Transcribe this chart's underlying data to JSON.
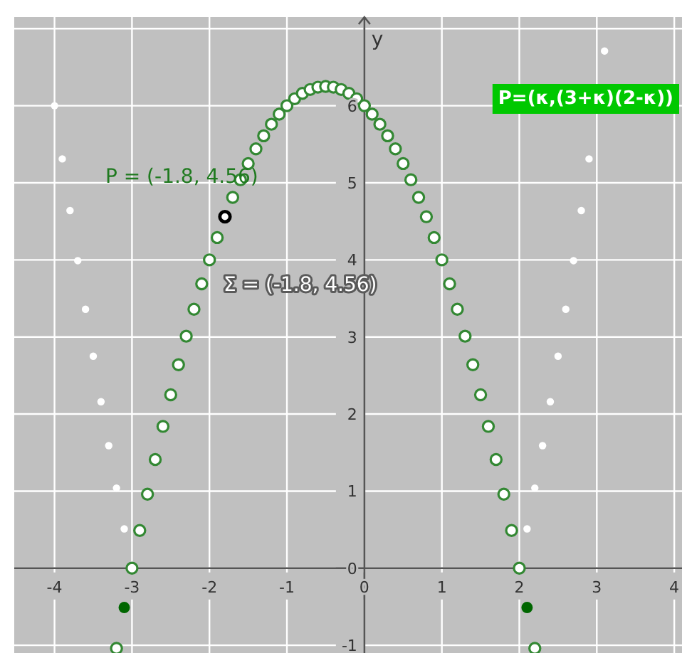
{
  "chart_data": {
    "type": "scatter",
    "title": "P=(κ,(3+κ)(2-κ))",
    "ylabel": "y",
    "xlim": [
      -4.52,
      4.1
    ],
    "ylim": [
      -1.1,
      7.15
    ],
    "xticks": [
      -4,
      -3,
      -2,
      -1,
      0,
      1,
      2,
      3,
      4
    ],
    "yticks": [
      -1,
      0,
      1,
      2,
      3,
      4,
      5,
      6,
      {
        "value": 7,
        "label": null
      }
    ],
    "grid": true,
    "marker": "circle",
    "series": [
      {
        "color": "#ffffff",
        "x": [
          -4.0,
          -3.9,
          -3.8,
          -3.7,
          -3.6,
          -3.5,
          -3.4,
          -3.3,
          -3.2,
          -3.1,
          2.1,
          2.2,
          2.3,
          2.4,
          2.5,
          2.6,
          2.7,
          2.8,
          2.9,
          3.1
        ],
        "values": [
          6,
          5.31,
          4.64,
          3.99,
          3.36,
          2.75,
          2.16,
          1.59,
          1.04,
          0.51,
          0.51,
          1.04,
          1.59,
          2.16,
          2.75,
          3.36,
          3.99,
          4.64,
          5.31,
          6.71
        ]
      },
      {
        "color": "#338833",
        "x": [
          -3.2,
          -3.0,
          -2.9,
          -2.8,
          -2.7,
          -2.6,
          -2.5,
          -2.4,
          -2.3,
          -2.2,
          -2.1,
          -2.0,
          -1.9,
          -1.7,
          -1.6,
          -1.5,
          -1.4,
          -1.3,
          -1.2,
          -1.1,
          -1.0,
          -0.9,
          -0.8,
          -0.7,
          -0.6,
          -0.5,
          -0.4,
          -0.3,
          -0.2,
          -0.1,
          0,
          0.1,
          0.2,
          0.3,
          0.4,
          0.5,
          0.6,
          0.7,
          0.8,
          0.9,
          1.0,
          1.1,
          1.2,
          1.3,
          1.4,
          1.5,
          1.6,
          1.7,
          1.8,
          1.9,
          2.0,
          2.2
        ],
        "values": [
          -1.04,
          0,
          0.49,
          0.96,
          1.41,
          1.84,
          2.25,
          2.64,
          3.01,
          3.36,
          3.69,
          4,
          4.29,
          4.81,
          5.04,
          5.25,
          5.44,
          5.61,
          5.76,
          5.89,
          6,
          6.09,
          6.16,
          6.21,
          6.24,
          6.25,
          6.24,
          6.21,
          6.16,
          6.09,
          6,
          5.89,
          5.76,
          5.61,
          5.44,
          5.25,
          5.04,
          4.81,
          4.56,
          4.29,
          4,
          3.69,
          3.36,
          3.01,
          2.64,
          2.25,
          1.84,
          1.41,
          0.96,
          0.49,
          0,
          -1.04
        ]
      },
      {
        "color": "#006600",
        "x": [
          -3.1,
          2.1
        ],
        "values": [
          -0.51,
          -0.51
        ]
      },
      {
        "color": "#000000",
        "x": [
          -1.8
        ],
        "values": [
          4.56
        ]
      }
    ],
    "annotations": [
      {
        "text": "P = (-1.8, 4.56)",
        "x": -1.8,
        "y": 4.56
      },
      {
        "text": "Σ = (-1.8, 4.56)",
        "x": -1.8,
        "y": 4.56
      }
    ]
  }
}
